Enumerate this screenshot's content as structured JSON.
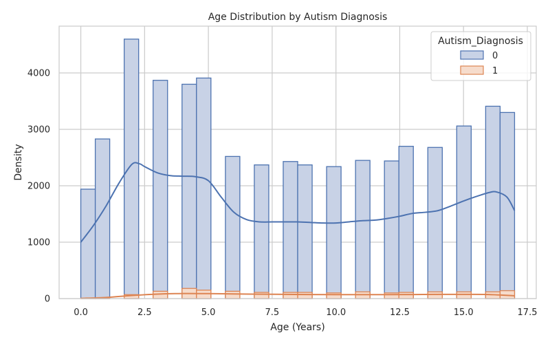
{
  "chart_data": {
    "type": "histogram",
    "title": "Age Distribution by Autism Diagnosis",
    "xlabel": "Age (Years)",
    "ylabel": "Density",
    "xlim": [
      -0.85,
      17.85
    ],
    "ylim": [
      0,
      4830
    ],
    "x_ticks": [
      0.0,
      2.5,
      5.0,
      7.5,
      10.0,
      12.5,
      15.0,
      17.5
    ],
    "x_tick_labels": [
      "0.0",
      "2.5",
      "5.0",
      "7.5",
      "10.0",
      "12.5",
      "15.0",
      "17.5"
    ],
    "y_ticks": [
      0,
      1000,
      2000,
      3000,
      4000
    ],
    "y_tick_labels": [
      "0",
      "1000",
      "2000",
      "3000",
      "4000"
    ],
    "grid": true,
    "legend": {
      "title": "Autism_Diagnosis",
      "placement": "top-right",
      "entries": [
        "0",
        "1"
      ]
    },
    "series": [
      {
        "name": "0",
        "line_color": "#4c72b0",
        "fill_color": "#c8d2e6",
        "bins": [
          {
            "x0": 0.0,
            "x1": 0.567,
            "value": 1940
          },
          {
            "x0": 0.567,
            "x1": 1.133,
            "value": 2830
          },
          {
            "x0": 1.7,
            "x1": 2.267,
            "value": 4600
          },
          {
            "x0": 2.833,
            "x1": 3.4,
            "value": 3870
          },
          {
            "x0": 3.967,
            "x1": 4.533,
            "value": 3800
          },
          {
            "x0": 4.533,
            "x1": 5.1,
            "value": 3910
          },
          {
            "x0": 5.667,
            "x1": 6.233,
            "value": 2520
          },
          {
            "x0": 6.8,
            "x1": 7.367,
            "value": 2370
          },
          {
            "x0": 7.933,
            "x1": 8.5,
            "value": 2430
          },
          {
            "x0": 8.5,
            "x1": 9.067,
            "value": 2370
          },
          {
            "x0": 9.633,
            "x1": 10.2,
            "value": 2340
          },
          {
            "x0": 10.767,
            "x1": 11.333,
            "value": 2450
          },
          {
            "x0": 11.9,
            "x1": 12.467,
            "value": 2440
          },
          {
            "x0": 12.467,
            "x1": 13.033,
            "value": 2700
          },
          {
            "x0": 13.6,
            "x1": 14.167,
            "value": 2680
          },
          {
            "x0": 14.733,
            "x1": 15.3,
            "value": 3060
          },
          {
            "x0": 15.867,
            "x1": 16.433,
            "value": 3410
          },
          {
            "x0": 16.433,
            "x1": 17.0,
            "value": 3300
          }
        ],
        "kde": [
          [
            0,
            1000
          ],
          [
            0.5,
            1300
          ],
          [
            1,
            1650
          ],
          [
            1.5,
            2050
          ],
          [
            2,
            2380
          ],
          [
            2.3,
            2390
          ],
          [
            2.5,
            2340
          ],
          [
            3,
            2230
          ],
          [
            3.5,
            2180
          ],
          [
            4,
            2170
          ],
          [
            4.5,
            2160
          ],
          [
            5,
            2090
          ],
          [
            5.5,
            1800
          ],
          [
            6,
            1530
          ],
          [
            6.5,
            1400
          ],
          [
            7,
            1360
          ],
          [
            7.5,
            1360
          ],
          [
            8,
            1360
          ],
          [
            8.5,
            1360
          ],
          [
            9,
            1350
          ],
          [
            9.5,
            1340
          ],
          [
            10,
            1340
          ],
          [
            10.5,
            1360
          ],
          [
            11,
            1380
          ],
          [
            11.5,
            1390
          ],
          [
            12,
            1420
          ],
          [
            12.5,
            1460
          ],
          [
            13,
            1510
          ],
          [
            13.5,
            1530
          ],
          [
            14,
            1560
          ],
          [
            14.5,
            1640
          ],
          [
            15,
            1730
          ],
          [
            15.5,
            1810
          ],
          [
            16,
            1880
          ],
          [
            16.3,
            1890
          ],
          [
            16.7,
            1800
          ],
          [
            17,
            1560
          ]
        ]
      },
      {
        "name": "1",
        "line_color": "#dd8452",
        "fill_color": "#f6dccc",
        "bins": [
          {
            "x0": 0.0,
            "x1": 0.567,
            "value": 5
          },
          {
            "x0": 0.567,
            "x1": 1.133,
            "value": 10
          },
          {
            "x0": 1.7,
            "x1": 2.267,
            "value": 70
          },
          {
            "x0": 2.833,
            "x1": 3.4,
            "value": 130
          },
          {
            "x0": 3.967,
            "x1": 4.533,
            "value": 180
          },
          {
            "x0": 4.533,
            "x1": 5.1,
            "value": 150
          },
          {
            "x0": 5.667,
            "x1": 6.233,
            "value": 130
          },
          {
            "x0": 6.8,
            "x1": 7.367,
            "value": 110
          },
          {
            "x0": 7.933,
            "x1": 8.5,
            "value": 110
          },
          {
            "x0": 8.5,
            "x1": 9.067,
            "value": 110
          },
          {
            "x0": 9.633,
            "x1": 10.2,
            "value": 100
          },
          {
            "x0": 10.767,
            "x1": 11.333,
            "value": 120
          },
          {
            "x0": 11.9,
            "x1": 12.467,
            "value": 100
          },
          {
            "x0": 12.467,
            "x1": 13.033,
            "value": 110
          },
          {
            "x0": 13.6,
            "x1": 14.167,
            "value": 120
          },
          {
            "x0": 14.733,
            "x1": 15.3,
            "value": 120
          },
          {
            "x0": 15.867,
            "x1": 16.433,
            "value": 120
          },
          {
            "x0": 16.433,
            "x1": 17.0,
            "value": 140
          }
        ],
        "kde": [
          [
            0,
            5
          ],
          [
            1,
            20
          ],
          [
            2,
            55
          ],
          [
            3,
            80
          ],
          [
            4,
            90
          ],
          [
            5,
            88
          ],
          [
            6,
            82
          ],
          [
            7,
            78
          ],
          [
            8,
            75
          ],
          [
            9,
            72
          ],
          [
            10,
            70
          ],
          [
            11,
            70
          ],
          [
            12,
            70
          ],
          [
            13,
            72
          ],
          [
            14,
            74
          ],
          [
            15,
            74
          ],
          [
            16,
            72
          ],
          [
            17,
            50
          ]
        ]
      }
    ]
  }
}
